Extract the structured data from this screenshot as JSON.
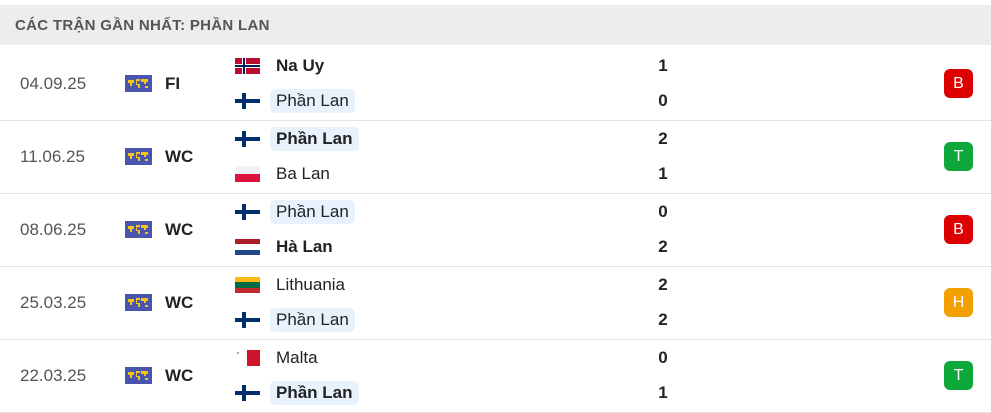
{
  "header": {
    "title": "CÁC TRẬN GẦN NHẤT: PHẦN LAN"
  },
  "colors": {
    "loss": "#dc0000",
    "win": "#0da73a",
    "draw": "#f3a000",
    "highlight": "#e8f2fd"
  },
  "matches": [
    {
      "date": "04.09.25",
      "league": "FI",
      "home": {
        "name": "Na Uy",
        "flag": "norway",
        "score": "1",
        "bold": true,
        "highlight": false
      },
      "away": {
        "name": "Phần Lan",
        "flag": "finland",
        "score": "0",
        "bold": false,
        "highlight": true
      },
      "result": "B",
      "result_type": "loss"
    },
    {
      "date": "11.06.25",
      "league": "WC",
      "home": {
        "name": "Phần Lan",
        "flag": "finland",
        "score": "2",
        "bold": true,
        "highlight": true
      },
      "away": {
        "name": "Ba Lan",
        "flag": "poland",
        "score": "1",
        "bold": false,
        "highlight": false
      },
      "result": "T",
      "result_type": "win"
    },
    {
      "date": "08.06.25",
      "league": "WC",
      "home": {
        "name": "Phần Lan",
        "flag": "finland",
        "score": "0",
        "bold": false,
        "highlight": true
      },
      "away": {
        "name": "Hà Lan",
        "flag": "netherlands",
        "score": "2",
        "bold": true,
        "highlight": false
      },
      "result": "B",
      "result_type": "loss"
    },
    {
      "date": "25.03.25",
      "league": "WC",
      "home": {
        "name": "Lithuania",
        "flag": "lithuania",
        "score": "2",
        "bold": false,
        "highlight": false
      },
      "away": {
        "name": "Phần Lan",
        "flag": "finland",
        "score": "2",
        "bold": false,
        "highlight": true
      },
      "result": "H",
      "result_type": "draw"
    },
    {
      "date": "22.03.25",
      "league": "WC",
      "home": {
        "name": "Malta",
        "flag": "malta",
        "score": "0",
        "bold": false,
        "highlight": false
      },
      "away": {
        "name": "Phần Lan",
        "flag": "finland",
        "score": "1",
        "bold": true,
        "highlight": true
      },
      "result": "T",
      "result_type": "win"
    }
  ]
}
